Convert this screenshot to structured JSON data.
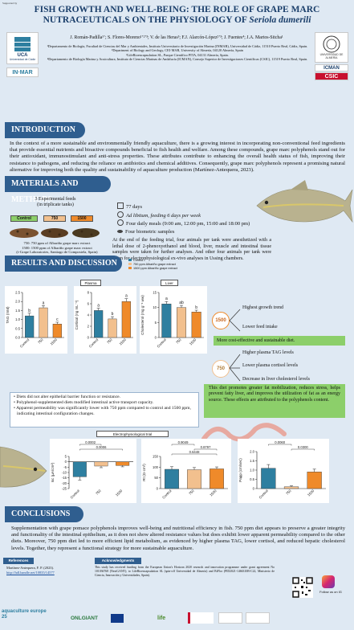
{
  "supported_by": "Supported by",
  "title_line1": "FISH GROWTH AND WELL-BEING: THE ROLE OF GRAPE MARC",
  "title_line2": "NUTRACEUTICALS ON THE PHYSIOLOGY OF",
  "title_species": "Seriola dumerili",
  "authors": "J. Román-Padilla¹ʼ; S. Flores-Moreno¹ʼ²ʼ³; V. de las Heras³; F.J. Alarcón-López²ʼ³; J. Fuentes⁴; J.A. Martos-Sitcha¹",
  "affiliations": [
    "¹Departamento de Biología, Facultad de Ciencias del Mar y Ambientales, Instituto Universitario de Investigación Marina (INMAR), Universidad de Cádiz, 11510 Puerto Real, Cádiz, Spain.",
    "²Department of Biology and Geology, CEI·MAR, University of Almería, 04120 Almería, Spain",
    "³LifeBioencapsulation SL, Parque Científico PITA, 04131 Almería, Spain.",
    "⁴Departamento de Biología Marina y Acuicultura, Instituto de Ciencias Marinas de Andalucía (ICMAN), Consejo Superior de Investigaciones Científicas (CSIC), 11519 Puerto Real, Spain."
  ],
  "logos": {
    "uca": "UCA",
    "uca_sub": "Universidad de Cádiz",
    "inmar": "IN·MAR",
    "ual": "UNIVERSIDAD DE ALMERÍA",
    "icman": "ICMAN",
    "csic": "CSIC"
  },
  "intro": {
    "heading": "INTRODUCTION",
    "text": "In the context of a more sustainable and environmentally friendly aquaculture, there is a growing interest in incorporating non-conventional feed ingredients that provide essential nutrients and bioactive compounds beneficial to fish health and welfare. Among these compounds, grape marc polyphenols stand out for their antioxidant, immunostimulant and anti-stress properties. These attributes contribute to enhancing the overall health status of fish, improving their resistance to pathogens, and reducing the reliance on antibiotics and chemical additives. Consequently, grape marc polyphenols represent a promising natural alternative for improving both the quality and sustainability of aquaculture production (Martínez-Antequera, 2023)."
  },
  "methods": {
    "heading": "MATERIALS AND METHODS",
    "feeds_title": "3 Experimental feeds",
    "feeds_sub": "(in triplicate tanks)",
    "feed_labels": [
      "Control",
      "750",
      "1500"
    ],
    "feed_desc": [
      "750: 750 ppm of Albariño grape marc extract",
      "1500: 1500 ppm of Albariño grape marc extract",
      "(i-Grape Laboratories, Santiago de Compostela, Spain)"
    ],
    "bullets": [
      "77 days",
      "Ad libitum, feeding 6 days per week",
      "Four daily meals (9:00 am, 12:00 pm, 15:00 and 18:00 pm)",
      "Four biometric samples"
    ],
    "paragraph": "At the end of the feeding trial, four animals per tank were anesthetized with a lethal dose of 2-phenoxyethanol and blood, liver, muscle and intestinal tissue samples were taken for further analyses. And other four animals per tank were taken for electrophysiological ex-vivo analyses in Ussing chambers."
  },
  "results": {
    "heading": "RESULTS AND DISCUSSION",
    "legend": [
      "Control",
      "750 ppm Albariño grape extract",
      "1500 ppm Albariño grape extract"
    ],
    "plasma_label": "Plasma",
    "liver_label": "Liver",
    "box1500_label": "1500",
    "box1500_items": [
      "Highest growth trend",
      "Lower feed intake"
    ],
    "box1500_green": "More cost-effective and sustainable diet.",
    "box750_label": "750",
    "box750_items": [
      "Higher plasma TAG levels",
      "Lower plasma cortisol levels",
      "Decrease in liver cholesterol levels"
    ],
    "box750_green": "This diet promotes greater fat mobilization, reduces stress, helps prevent fatty liver, and improves the utilization of fat as an energy source. These effects are attributed to the polyphenols content.",
    "intestine_bullets": [
      "Diets did not alter epithelial barrier function or resistance.",
      "Polyphenol-supplemented diets modified intestinal active transport capacity.",
      "Apparent permeability was significantly lower with 750 ppm compared to control and 1500 ppm, indicating intestinal configuration changes."
    ],
    "electro_label": "Electrophysiological trial"
  },
  "conclusions": {
    "heading": "CONCLUSIONS",
    "text": "Supplementation with grape pomace polyphenols improves well-being and nutritional efficiency in fish. 750 ppm diet appears to preserve a greater integrity and functionality of the intestinal epithelium, as it does not show altered resistance values but does exhibit lower apparent permeability compared to the other diets. Moreover, 750 ppm diet led to more efficient lipid metabolism, as evidenced by higher plasma TAG, lower cortisol, and reduced hepatic cholesterol levels. Together, they represent a functional strategy for more sustainable aquaculture."
  },
  "references": {
    "heading": "References",
    "text": "Martínez-Antequera, F. P. (2023).",
    "link": "http://hdl.handle.net/10835/14577"
  },
  "acknowledgments": {
    "heading": "Acknowledgments",
    "text": "This study has received funding from the European Union's Horizon 2020 research and innovation programme under grant agreement No 101036768 (NextGANT); to LifeBioencapsulation SL (spin-off Universidad de Almería) and BiFlor (PID2021-1466310B-C22, Ministerio de Ciencia, Innovación y Universidades, Spain)."
  },
  "footer": {
    "aquaculture": "aquaculture europe 25",
    "onlgiant": "ONLGIANT",
    "life": "life",
    "follow": "Follow us on IG"
  },
  "colors": {
    "navy": "#2f5e8f",
    "green": "#8ccf6a",
    "control": "#2e7fa0",
    "d750": "#f2c08e",
    "d1500": "#ef8a2a"
  },
  "chart_data": [
    {
      "type": "bar",
      "categories": [
        "Control",
        "750",
        "1500"
      ],
      "values": [
        1.2,
        1.65,
        0.75
      ],
      "errors": [
        0.15,
        0.12,
        0.1
      ],
      "letters": [
        "b",
        "a",
        "c"
      ],
      "ylabel": "TAG (mM)",
      "ylim": [
        0,
        2.5
      ],
      "yticks": [
        "0.0",
        "0.5",
        "1.0",
        "1.5",
        "2.0",
        "2.5"
      ]
    },
    {
      "type": "bar",
      "categories": [
        "Control",
        "750",
        "1500"
      ],
      "values": [
        4.8,
        3.3,
        6.4
      ],
      "errors": [
        0.4,
        0.4,
        0.5
      ],
      "letters": [
        "a",
        "b",
        "a"
      ],
      "ylabel": "Cortisol (ng mL⁻¹)",
      "ylim": [
        0,
        8
      ],
      "yticks": [
        "0",
        "2",
        "4",
        "6",
        "8"
      ]
    },
    {
      "type": "bar",
      "categories": [
        "Control",
        "750",
        "1500"
      ],
      "values": [
        11.2,
        10.0,
        8.5
      ],
      "errors": [
        0.8,
        0.7,
        0.6
      ],
      "letters": [
        "a",
        "ab",
        "b"
      ],
      "ylabel": "Cholesterol (mg g⁻¹ ww)",
      "ylim": [
        0,
        15
      ],
      "yticks": [
        "0",
        "5",
        "10",
        "15"
      ]
    },
    {
      "type": "bar",
      "categories": [
        "Control",
        "750",
        "1500"
      ],
      "values": [
        -14,
        -4,
        -3.5
      ],
      "errors": [
        3,
        1.5,
        1.2
      ],
      "ylabel": "Isc (µA/cm²)",
      "ylim": [
        -25,
        5
      ],
      "yticks": [
        "-25",
        "-20",
        "-15",
        "-10",
        "-5",
        "0",
        "5"
      ],
      "pvalues": [
        {
          "from": 0,
          "to": 1,
          "label": "0.0002"
        },
        {
          "from": 0,
          "to": 2,
          "label": "0.0006"
        }
      ]
    },
    {
      "type": "bar",
      "categories": [
        "Control",
        "750",
        "1500"
      ],
      "values": [
        90,
        88,
        92
      ],
      "errors": [
        12,
        10,
        9
      ],
      "ylabel": "Rt (Ω·cm²)",
      "ylim": [
        0,
        150
      ],
      "yticks": [
        "0",
        "50",
        "100",
        "150"
      ],
      "pvalues": [
        {
          "from": 0,
          "to": 1,
          "label": "0.9049"
        },
        {
          "from": 1,
          "to": 2,
          "label": "0.8797"
        },
        {
          "from": 0,
          "to": 2,
          "label": "0.6448"
        }
      ]
    },
    {
      "type": "bar",
      "categories": [
        "Control",
        "750",
        "1500"
      ],
      "values": [
        1.1,
        0.1,
        0.9
      ],
      "errors": [
        0.2,
        0.05,
        0.15
      ],
      "ylabel": "Papp (cm/sec)",
      "ylim": [
        0,
        2
      ],
      "yticks": [
        "0",
        "0.5",
        "1.0",
        "1.5",
        "2.0"
      ],
      "pvalues": [
        {
          "from": 0,
          "to": 1,
          "label": "0.0060"
        },
        {
          "from": 1,
          "to": 2,
          "label": "0.0300"
        }
      ]
    }
  ]
}
